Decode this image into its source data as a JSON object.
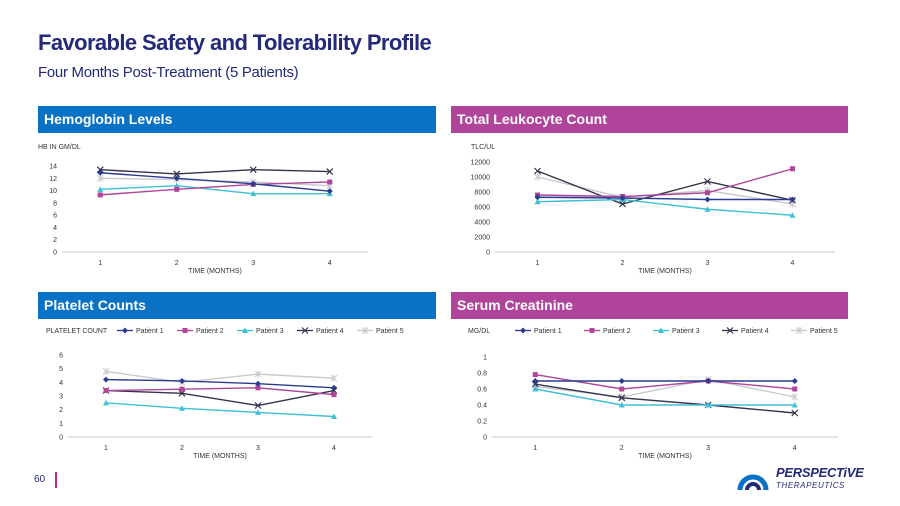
{
  "title": "Favorable Safety and Tolerability Profile",
  "subtitle": "Four Months Post-Treatment (5 Patients)",
  "page_number": "60",
  "logo": {
    "name": "PERSPECTiVE",
    "sub": "THERAPEUTICS"
  },
  "colors": {
    "blue_header": "#0a72c4",
    "magenta_header": "#b0449a",
    "title": "#24297a"
  },
  "series_styles": [
    {
      "name": "Patient 1",
      "color": "#2a3c8f",
      "marker": "diamond"
    },
    {
      "name": "Patient 2",
      "color": "#b0449a",
      "marker": "square"
    },
    {
      "name": "Patient 3",
      "color": "#3fc0d6",
      "marker": "triangle"
    },
    {
      "name": "Patient 4",
      "color": "#33334d",
      "marker": "x"
    },
    {
      "name": "Patient 5",
      "color": "#c9c9cf",
      "marker": "star"
    }
  ],
  "chart_data": [
    {
      "id": "hemoglobin",
      "header": "Hemoglobin Levels",
      "type": "line",
      "ylabel": "HB IN GM/DL",
      "xlabel": "TIME (MONTHS)",
      "categories": [
        "1",
        "2",
        "3",
        "4"
      ],
      "ylim": [
        0,
        14
      ],
      "yticks": [
        0,
        2,
        4,
        6,
        8,
        10,
        12,
        14
      ],
      "legend": false,
      "series": [
        {
          "name": "Patient 1",
          "values": [
            12.9,
            12.0,
            11.1,
            9.9
          ]
        },
        {
          "name": "Patient 2",
          "values": [
            9.3,
            10.2,
            11.0,
            11.4
          ]
        },
        {
          "name": "Patient 3",
          "values": [
            10.2,
            10.8,
            9.5,
            9.5
          ]
        },
        {
          "name": "Patient 4",
          "values": [
            13.4,
            12.7,
            13.4,
            13.1
          ]
        },
        {
          "name": "Patient 5",
          "values": [
            12.0,
            11.8,
            11.4,
            10.8
          ]
        }
      ]
    },
    {
      "id": "leukocyte",
      "header": "Total Leukocyte Count",
      "type": "line",
      "ylabel": "TLC/UL",
      "xlabel": "TIME (MONTHS)",
      "categories": [
        "1",
        "2",
        "3",
        "4"
      ],
      "ylim": [
        0,
        12000
      ],
      "yticks": [
        0,
        2000,
        4000,
        6000,
        8000,
        10000,
        12000
      ],
      "legend": false,
      "series": [
        {
          "name": "Patient 1",
          "values": [
            7300,
            7200,
            7000,
            7000
          ]
        },
        {
          "name": "Patient 2",
          "values": [
            7600,
            7400,
            7900,
            11100
          ]
        },
        {
          "name": "Patient 3",
          "values": [
            6700,
            7000,
            5700,
            4900
          ]
        },
        {
          "name": "Patient 4",
          "values": [
            10800,
            6400,
            9400,
            6900
          ]
        },
        {
          "name": "Patient 5",
          "values": [
            10000,
            7300,
            8200,
            6400
          ]
        }
      ]
    },
    {
      "id": "platelet",
      "header": "Platelet Counts",
      "type": "line",
      "ylabel": "PLATELET COUNT",
      "xlabel": "TIME (MONTHS)",
      "categories": [
        "1",
        "2",
        "3",
        "4"
      ],
      "ylim": [
        0,
        6
      ],
      "yticks": [
        0,
        1,
        2,
        3,
        4,
        5,
        6
      ],
      "legend": true,
      "series": [
        {
          "name": "Patient 1",
          "values": [
            4.2,
            4.1,
            3.9,
            3.6
          ]
        },
        {
          "name": "Patient 2",
          "values": [
            3.4,
            3.5,
            3.6,
            3.1
          ]
        },
        {
          "name": "Patient 3",
          "values": [
            2.5,
            2.1,
            1.8,
            1.5
          ]
        },
        {
          "name": "Patient 4",
          "values": [
            3.4,
            3.2,
            2.3,
            3.4
          ]
        },
        {
          "name": "Patient 5",
          "values": [
            4.8,
            4.0,
            4.6,
            4.3
          ]
        }
      ]
    },
    {
      "id": "creatinine",
      "header": "Serum Creatinine",
      "type": "line",
      "ylabel": "MG/DL",
      "xlabel": "TIME (MONTHS)",
      "categories": [
        "1",
        "2",
        "3",
        "4"
      ],
      "ylim": [
        0,
        1
      ],
      "yticks": [
        0,
        0.2,
        0.4,
        0.6,
        0.8,
        1
      ],
      "legend": true,
      "series": [
        {
          "name": "Patient 1",
          "values": [
            0.7,
            0.7,
            0.7,
            0.7
          ]
        },
        {
          "name": "Patient 2",
          "values": [
            0.78,
            0.6,
            0.7,
            0.6
          ]
        },
        {
          "name": "Patient 3",
          "values": [
            0.6,
            0.4,
            0.4,
            0.4
          ]
        },
        {
          "name": "Patient 4",
          "values": [
            0.66,
            0.49,
            0.4,
            0.3
          ]
        },
        {
          "name": "Patient 5",
          "values": [
            0.63,
            0.5,
            0.72,
            0.5
          ]
        }
      ]
    }
  ]
}
